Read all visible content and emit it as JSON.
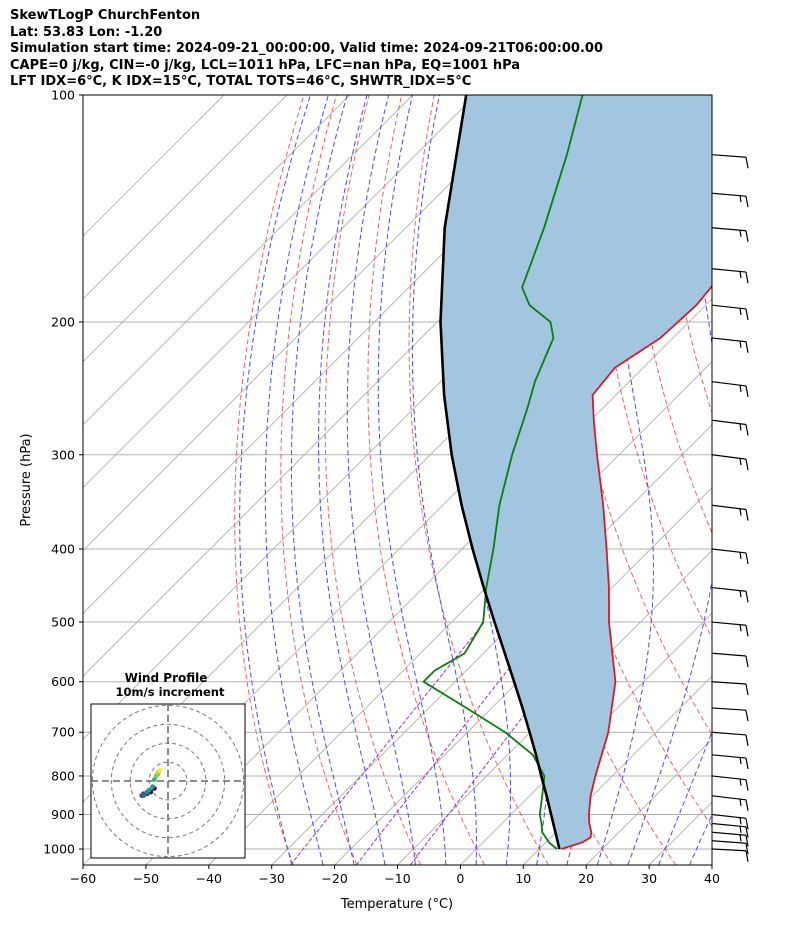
{
  "header": {
    "line1": "SkewTLogP ChurchFenton",
    "line2": "Lat: 53.83   Lon: -1.20",
    "line3": "Simulation start time: 2024-09-21_00:00:00, Valid time: 2024-09-21T06:00:00.00",
    "line4": "CAPE=0 j/kg, CIN=-0 j/kg, LCL=1011 hPa, LFC=nan hPa, EQ=1001 hPa",
    "line5": "LFT IDX=6°C, K IDX=15°C, TOTAL TOTS=46°C, SHWTR_IDX=5°C"
  },
  "chart_data": {
    "type": "line",
    "xlabel": "Temperature (°C)",
    "ylabel": "Pressure (hPa)",
    "xlim": [
      -60,
      40
    ],
    "ylim": [
      1050,
      100
    ],
    "x_ticks": [
      "−60",
      "−50",
      "−40",
      "−30",
      "−20",
      "−10",
      "0",
      "10",
      "20",
      "30",
      "40"
    ],
    "y_ticks": [
      "100",
      "200",
      "300",
      "400",
      "500",
      "600",
      "700",
      "800",
      "900",
      "1000"
    ],
    "y_scale": "log",
    "grid": true,
    "series": [
      {
        "name": "",
        "color": "#e8141a",
        "points": [
          [
            1000,
            13.5
          ],
          [
            980,
            15.8
          ],
          [
            965,
            16.3
          ],
          [
            950,
            15.6
          ],
          [
            925,
            13.9
          ],
          [
            900,
            12.4
          ],
          [
            850,
            9.7
          ],
          [
            800,
            7.3
          ],
          [
            700,
            2.4
          ],
          [
            600,
            -4.5
          ],
          [
            500,
            -15
          ],
          [
            450,
            -20.5
          ],
          [
            400,
            -27
          ],
          [
            350,
            -34.5
          ],
          [
            300,
            -43.5
          ],
          [
            270,
            -49.5
          ],
          [
            250,
            -53.7
          ],
          [
            230,
            -54.5
          ],
          [
            210,
            -52
          ],
          [
            190,
            -51.5
          ],
          [
            170,
            -52.5
          ],
          [
            150,
            -54
          ],
          [
            130,
            -56
          ],
          [
            115,
            -57.5
          ],
          [
            100,
            -60
          ]
        ]
      },
      {
        "name": "",
        "color": "#0a7e0a",
        "points": [
          [
            1000,
            12.8
          ],
          [
            980,
            10.5
          ],
          [
            950,
            7.8
          ],
          [
            925,
            6.3
          ],
          [
            900,
            4.6
          ],
          [
            850,
            2.0
          ],
          [
            800,
            -0.8
          ],
          [
            750,
            -6.0
          ],
          [
            700,
            -14
          ],
          [
            650,
            -24
          ],
          [
            600,
            -35
          ],
          [
            580,
            -35
          ],
          [
            550,
            -33
          ],
          [
            500,
            -35
          ],
          [
            450,
            -40
          ],
          [
            400,
            -45
          ],
          [
            350,
            -51
          ],
          [
            300,
            -57
          ],
          [
            260,
            -62
          ],
          [
            240,
            -65
          ],
          [
            210,
            -69
          ],
          [
            200,
            -72
          ],
          [
            190,
            -78
          ],
          [
            180,
            -82
          ],
          [
            150,
            -88
          ],
          [
            120,
            -96
          ],
          [
            100,
            -103
          ]
        ]
      },
      {
        "name": "",
        "color": "#000000",
        "points": [
          [
            1000,
            13.2
          ],
          [
            950,
            9.9
          ],
          [
            900,
            6.4
          ],
          [
            850,
            2.7
          ],
          [
            800,
            -1.3
          ],
          [
            750,
            -5.5
          ],
          [
            700,
            -10.1
          ],
          [
            650,
            -15.1
          ],
          [
            600,
            -20.6
          ],
          [
            550,
            -26.6
          ],
          [
            500,
            -33.2
          ],
          [
            450,
            -40.4
          ],
          [
            400,
            -48.3
          ],
          [
            350,
            -57
          ],
          [
            300,
            -66.6
          ],
          [
            250,
            -77.3
          ],
          [
            200,
            -89.5
          ],
          [
            150,
            -103.8
          ],
          [
            100,
            -121.5
          ]
        ]
      }
    ],
    "wind_barbs": [
      {
        "p": 1000,
        "u": -4,
        "v": 3
      },
      {
        "p": 975,
        "u": -6,
        "v": 4
      },
      {
        "p": 950,
        "u": -7,
        "v": 5
      },
      {
        "p": 925,
        "u": -8,
        "v": 5
      },
      {
        "p": 900,
        "u": -9,
        "v": 6
      },
      {
        "p": 850,
        "u": -9,
        "v": 7
      },
      {
        "p": 800,
        "u": -8,
        "v": 7
      },
      {
        "p": 750,
        "u": -7,
        "v": 6
      },
      {
        "p": 700,
        "u": -6,
        "v": 5
      },
      {
        "p": 650,
        "u": -5,
        "v": 4
      },
      {
        "p": 600,
        "u": -5,
        "v": 4
      },
      {
        "p": 550,
        "u": -6,
        "v": 5
      },
      {
        "p": 500,
        "u": -7,
        "v": 6
      },
      {
        "p": 450,
        "u": -8,
        "v": 7
      },
      {
        "p": 400,
        "u": -9,
        "v": 7
      },
      {
        "p": 350,
        "u": -10,
        "v": 7
      },
      {
        "p": 300,
        "u": -11,
        "v": 6
      },
      {
        "p": 270,
        "u": -11,
        "v": 5
      },
      {
        "p": 240,
        "u": -11,
        "v": 5
      },
      {
        "p": 210,
        "u": -10,
        "v": 4
      },
      {
        "p": 190,
        "u": -10,
        "v": 4
      },
      {
        "p": 170,
        "u": -9,
        "v": 3
      },
      {
        "p": 150,
        "u": -8,
        "v": 3
      },
      {
        "p": 135,
        "u": -8,
        "v": 2
      },
      {
        "p": 120,
        "u": -7,
        "v": 2
      }
    ],
    "hodograph": {
      "title": "Wind Profile",
      "subtitle": "10m/s increment",
      "rings": [
        10,
        20,
        30,
        40
      ],
      "points": [
        [
          -2,
          3
        ],
        [
          -4,
          5
        ],
        [
          -6,
          6
        ],
        [
          -8,
          6
        ],
        [
          -9,
          7
        ],
        [
          -9,
          7
        ],
        [
          -8,
          7
        ],
        [
          -7,
          6
        ],
        [
          -6,
          5
        ],
        [
          -5,
          4
        ],
        [
          -3,
          2
        ],
        [
          -2,
          -2
        ],
        [
          -1,
          -4
        ],
        [
          0,
          -5
        ],
        [
          0,
          -6
        ],
        [
          1,
          -7
        ]
      ]
    }
  }
}
